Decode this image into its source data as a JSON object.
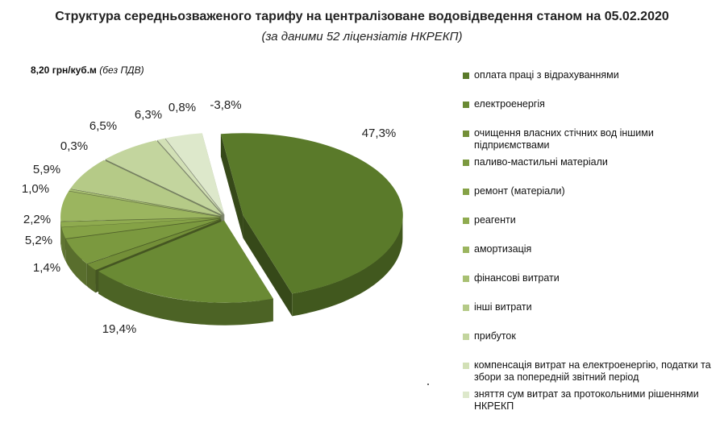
{
  "title": "Структура середньозваженого тарифу на централізоване водовідведення станом на 05.02.2020",
  "subtitle": "(за даними 52 ліцензіатів НКРЕКП)",
  "tariff_value": "8,20 грн/куб.м",
  "tariff_note": "(без ПДВ)",
  "chart_data": {
    "type": "pie",
    "title": "Структура середньозваженого тарифу на централізоване водовідведення станом на 05.02.2020",
    "subtitle": "(за даними 52 ліцензіатів НКРЕКП)",
    "legend_position": "right",
    "slices": [
      {
        "label": "оплата праці з відрахуваннями",
        "value": 47.3,
        "display": "47,3%",
        "color": "#5a7a2a"
      },
      {
        "label": "електроенергія",
        "value": 19.4,
        "display": "19,4%",
        "color": "#6a8a34"
      },
      {
        "label": "очищення власних стічних вод іншими підприємствами",
        "value": 1.4,
        "display": "1,4%",
        "color": "#738f38"
      },
      {
        "label": "паливо-мастильні матеріали",
        "value": 5.2,
        "display": "5,2%",
        "color": "#7b993f"
      },
      {
        "label": "ремонт (матеріали)",
        "value": 2.2,
        "display": "2,2%",
        "color": "#85a246"
      },
      {
        "label": "реагенти",
        "value": 1.0,
        "display": "1,0%",
        "color": "#8fab4f"
      },
      {
        "label": "амортизація",
        "value": 5.9,
        "display": "5,9%",
        "color": "#9bb55f"
      },
      {
        "label": "фінансові витрати",
        "value": 0.3,
        "display": "0,3%",
        "color": "#a8c072"
      },
      {
        "label": "інші витрати",
        "value": 6.5,
        "display": "6,5%",
        "color": "#b5ca87"
      },
      {
        "label": "прибуток",
        "value": 6.3,
        "display": "6,3%",
        "color": "#c3d59e"
      },
      {
        "label": "компенсація витрат на електроенергію, податки та збори за попередній звітний період",
        "value": 0.8,
        "display": "0,8%",
        "color": "#d2e0b6"
      },
      {
        "label": "зняття сум витрат за протокольними рішеннями НКРЕКП",
        "value": -3.8,
        "display": "-3,8%",
        "color": "#dde8cb"
      }
    ]
  }
}
